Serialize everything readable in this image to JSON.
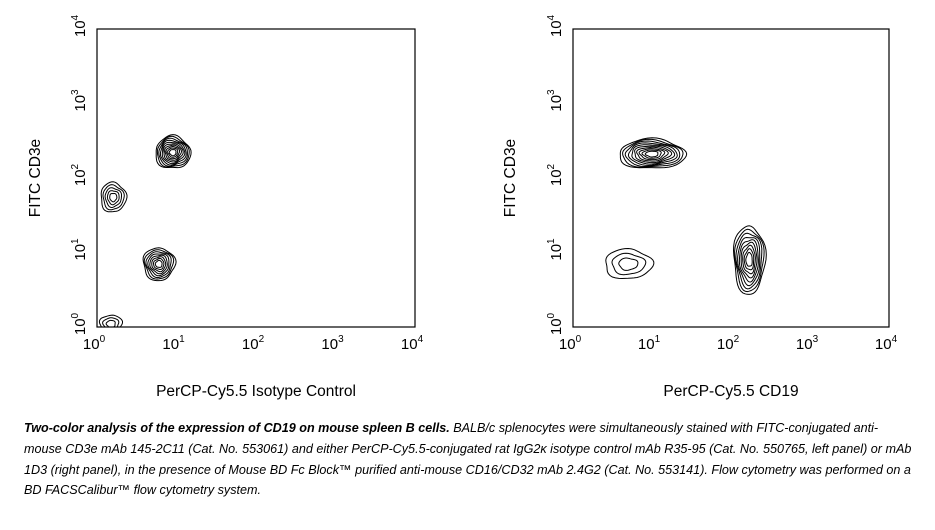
{
  "chart_data": [
    {
      "type": "contour",
      "panel": "left",
      "xlabel": "PerCP-Cy5.5 Isotype Control",
      "ylabel": "FITC CD3e",
      "x_scale": "log",
      "y_scale": "log",
      "xlim": [
        1,
        10000
      ],
      "ylim": [
        1,
        10000
      ],
      "x_ticks": [
        {
          "base": "10",
          "exp": "0",
          "value": 1
        },
        {
          "base": "10",
          "exp": "1",
          "value": 10
        },
        {
          "base": "10",
          "exp": "2",
          "value": 100
        },
        {
          "base": "10",
          "exp": "3",
          "value": 1000
        },
        {
          "base": "10",
          "exp": "4",
          "value": 10000
        }
      ],
      "y_ticks": [
        {
          "base": "10",
          "exp": "0",
          "value": 1
        },
        {
          "base": "10",
          "exp": "1",
          "value": 10
        },
        {
          "base": "10",
          "exp": "2",
          "value": 100
        },
        {
          "base": "10",
          "exp": "3",
          "value": 1000
        },
        {
          "base": "10",
          "exp": "4",
          "value": 10000
        }
      ],
      "populations": [
        {
          "x": 9,
          "y": 220,
          "x_spread": 0.22,
          "y_spread": 0.22,
          "levels": 10
        },
        {
          "x": 1.6,
          "y": 55,
          "x_spread": 0.16,
          "y_spread": 0.2,
          "levels": 5
        },
        {
          "x": 6,
          "y": 7,
          "x_spread": 0.2,
          "y_spread": 0.22,
          "levels": 8
        },
        {
          "x": 1.5,
          "y": 1.1,
          "x_spread": 0.14,
          "y_spread": 0.12,
          "levels": 3
        }
      ]
    },
    {
      "type": "contour",
      "panel": "right",
      "xlabel": "PerCP-Cy5.5 CD19",
      "ylabel": "FITC CD3e",
      "x_scale": "log",
      "y_scale": "log",
      "xlim": [
        1,
        10000
      ],
      "ylim": [
        1,
        10000
      ],
      "x_ticks": [
        {
          "base": "10",
          "exp": "0",
          "value": 1
        },
        {
          "base": "10",
          "exp": "1",
          "value": 10
        },
        {
          "base": "10",
          "exp": "2",
          "value": 100
        },
        {
          "base": "10",
          "exp": "3",
          "value": 1000
        },
        {
          "base": "10",
          "exp": "4",
          "value": 10000
        }
      ],
      "y_ticks": [
        {
          "base": "10",
          "exp": "0",
          "value": 1
        },
        {
          "base": "10",
          "exp": "1",
          "value": 10
        },
        {
          "base": "10",
          "exp": "2",
          "value": 100
        },
        {
          "base": "10",
          "exp": "3",
          "value": 1000
        },
        {
          "base": "10",
          "exp": "4",
          "value": 10000
        }
      ],
      "populations": [
        {
          "x": 10,
          "y": 210,
          "x_spread": 0.42,
          "y_spread": 0.2,
          "levels": 10
        },
        {
          "x": 5,
          "y": 7,
          "x_spread": 0.3,
          "y_spread": 0.2,
          "levels": 3
        },
        {
          "x": 170,
          "y": 8,
          "x_spread": 0.2,
          "y_spread": 0.46,
          "levels": 9
        }
      ]
    }
  ],
  "caption": {
    "title": "Two-color analysis of the expression of CD19 on mouse spleen B cells.",
    "body": " BALB/c splenocytes were simultaneously stained with FITC-conjugated anti-mouse CD3e mAb 145-2C11 (Cat. No. 553061) and either PerCP-Cy5.5-conjugated rat IgG2κ isotype control mAb R35-95 (Cat. No. 550765, left panel) or mAb 1D3 (right panel), in the presence of Mouse BD Fc Block™ purified anti-mouse CD16/CD32 mAb 2.4G2 (Cat. No. 553141). Flow cytometry was performed on a BD FACSCalibur™ flow cytometry system."
  }
}
